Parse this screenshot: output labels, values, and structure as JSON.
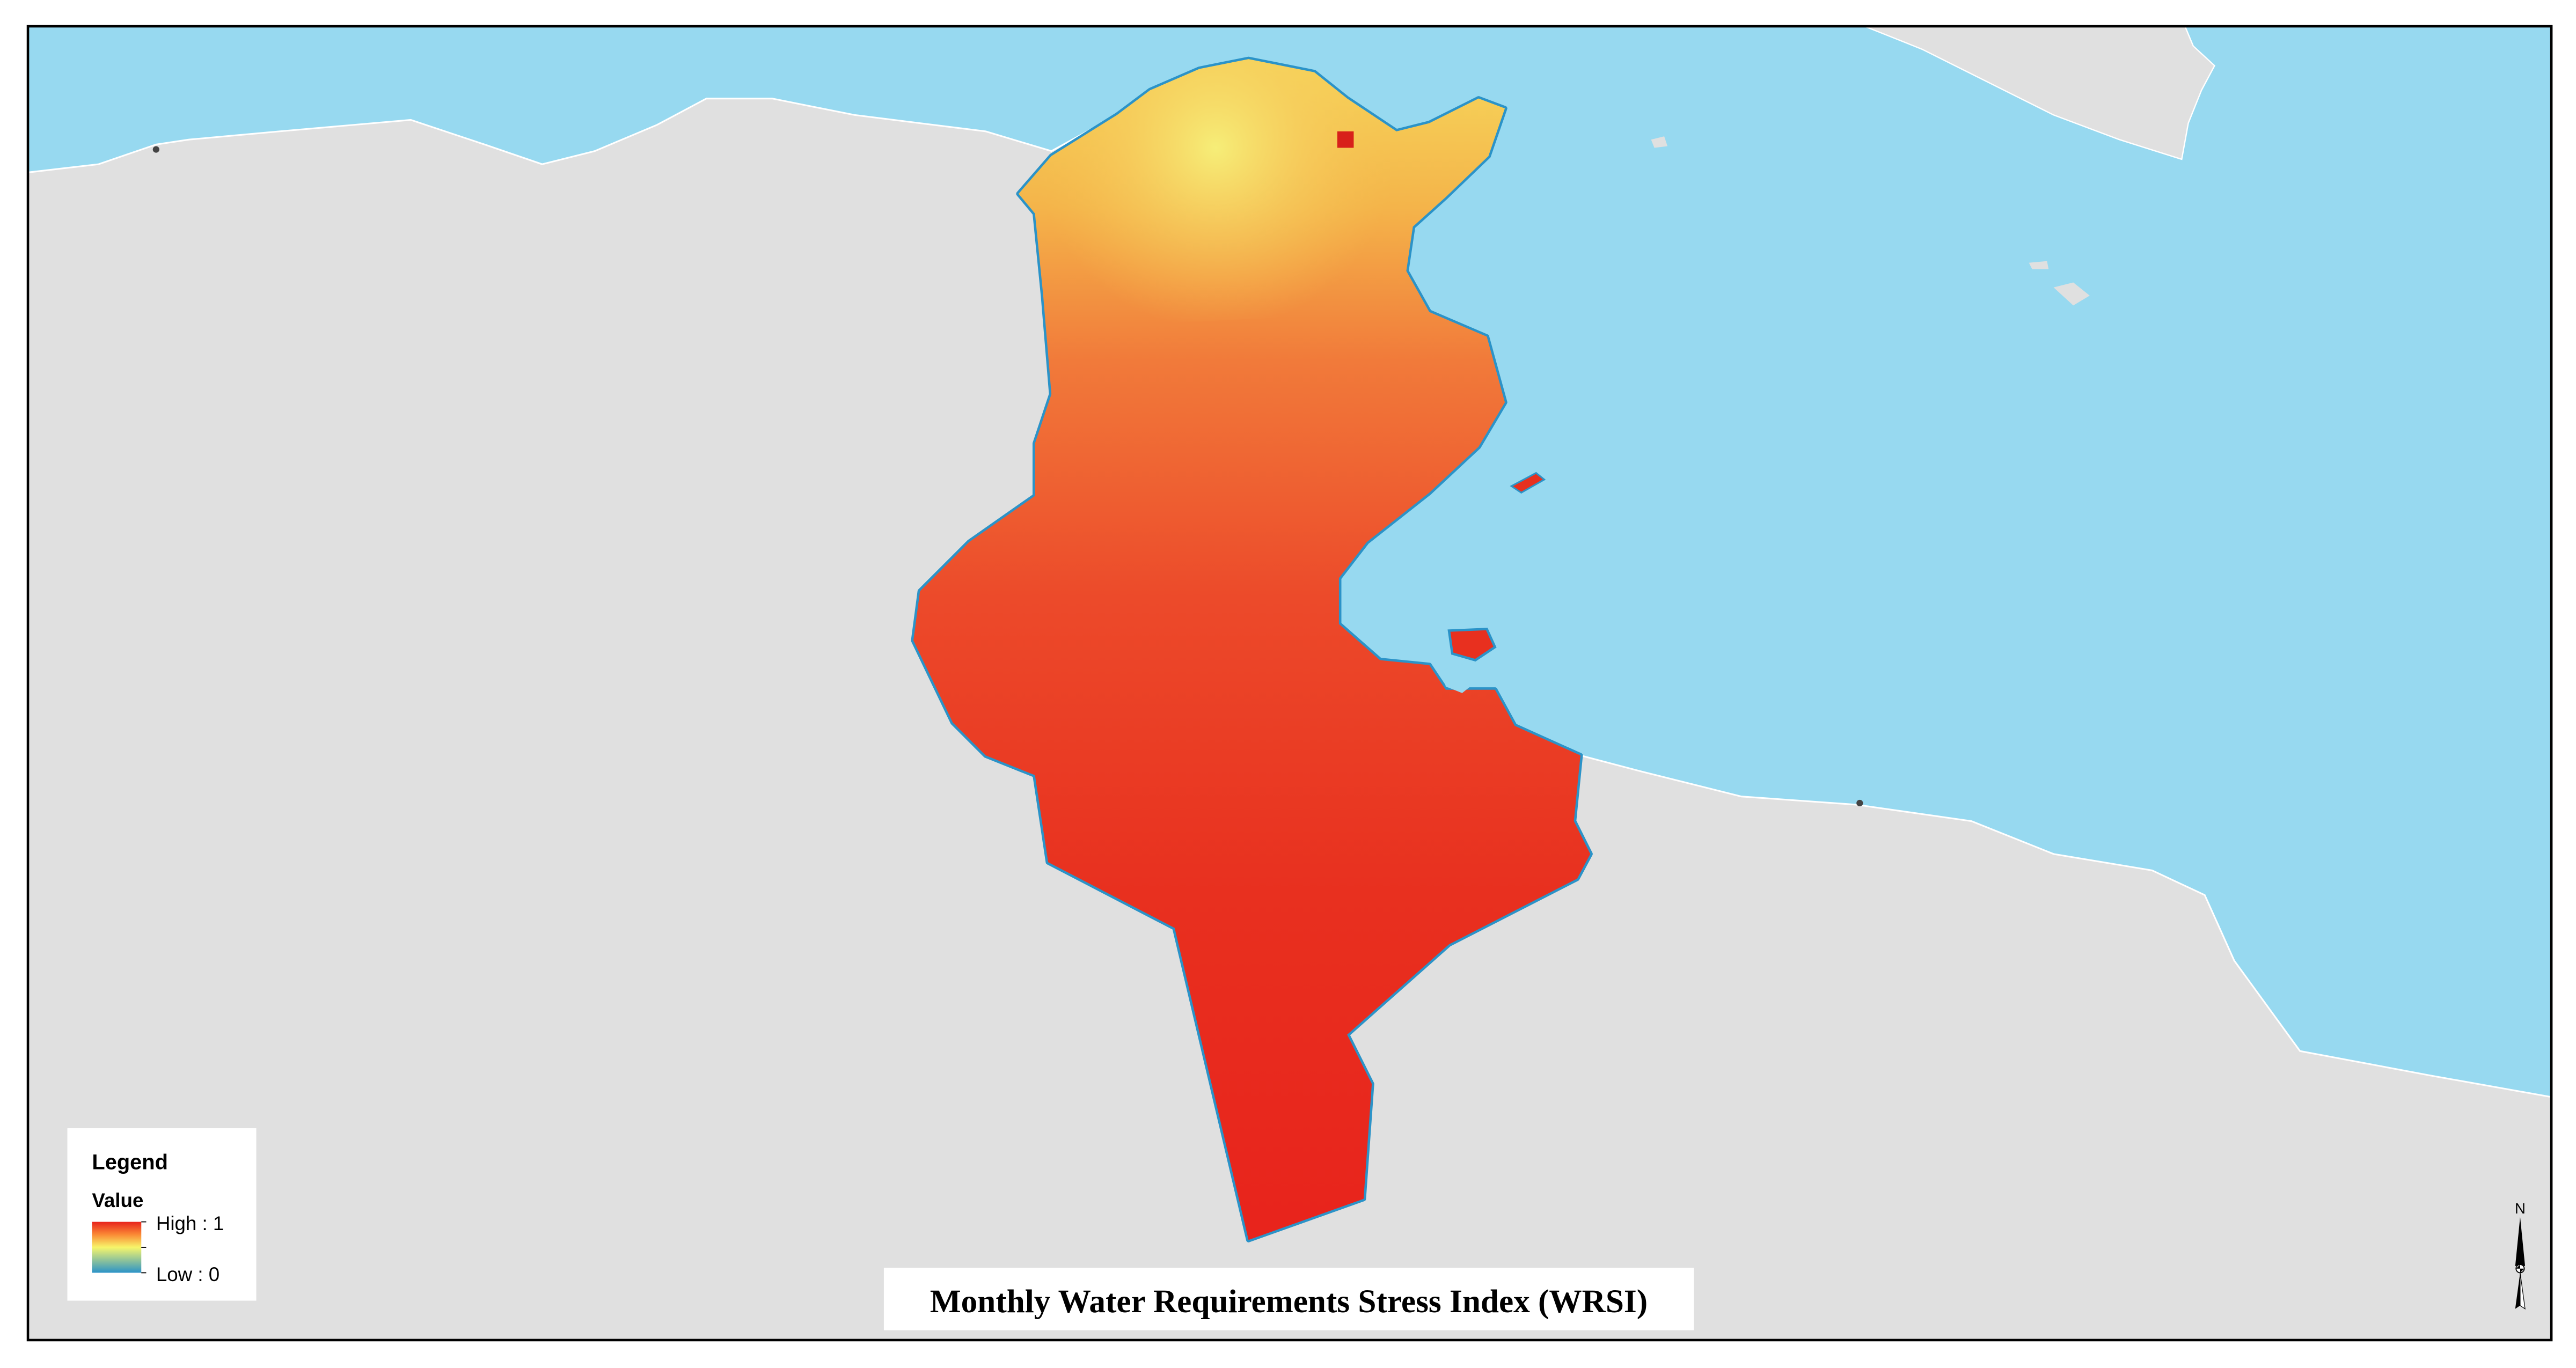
{
  "map": {
    "title": "Monthly Water Requirements Stress Index (WRSI)",
    "colors": {
      "sea": "#97d9f0",
      "land": "#e0e0e0",
      "coast_low": "#2b93c8",
      "high": "#e8231c",
      "mid": "#f7f56a",
      "low": "#2b93c8"
    }
  },
  "legend": {
    "title": "Legend",
    "field": "Value",
    "high_label": "High : 1",
    "low_label": "Low : 0"
  },
  "north_arrow": {
    "label": "N",
    "icon": "north-arrow-icon"
  }
}
